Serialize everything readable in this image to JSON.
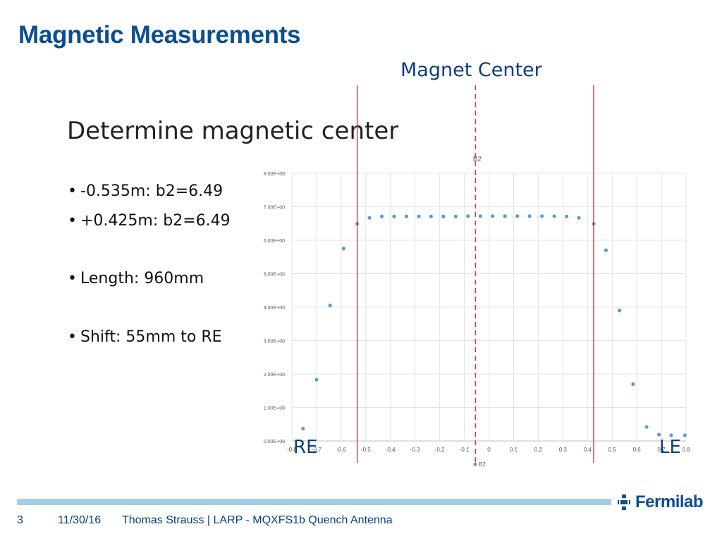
{
  "slide": {
    "title": "Magnetic Measurements",
    "magnet_center_label": "Magnet Center",
    "content_title": "Determine magnetic center",
    "bullets": [
      "-0.535m: b2=6.49",
      "+0.425m: b2=6.49",
      "Length: 960mm",
      "Shift: 55mm to RE"
    ],
    "bullet_glyph": "•",
    "left_end_label": "RE",
    "right_end_label": "LE",
    "colors": {
      "title": "#0b4f8f",
      "accent_blue": "#0b3e80",
      "marker_line": "#e0292b",
      "points": "#5b9bd5",
      "footer_bar": "#a3cde6"
    }
  },
  "footer": {
    "page_number": "3",
    "date": "11/30/16",
    "text": "Thomas Strauss | LARP - MQXFS1b Quench Antenna",
    "logo_text": "Fermilab",
    "logo_icon": "fermilab-logo-icon"
  },
  "chart_data": {
    "type": "scatter",
    "title": "B2",
    "xlim": [
      -0.8,
      0.8
    ],
    "ylim": [
      0,
      8
    ],
    "x_ticks": [
      -0.8,
      -0.7,
      -0.6,
      -0.5,
      -0.4,
      -0.3,
      -0.2,
      -0.1,
      0,
      0.1,
      0.2,
      0.3,
      0.4,
      0.5,
      0.6,
      0.7,
      0.8
    ],
    "x_tick_labels": [
      "-0.8",
      "-0.7",
      "-0.6",
      "-0.5",
      "-0.4",
      "-0.3",
      "-0.2",
      "-0.1",
      "0",
      "0.1",
      "0.2",
      "0.3",
      "0.4",
      "0.5",
      "0.6",
      "0.7",
      "0.8"
    ],
    "y_ticks": [
      0,
      1,
      2,
      3,
      4,
      5,
      6,
      7,
      8
    ],
    "y_tick_labels": [
      "0.00E+00",
      "1.00E+00",
      "2.00E+00",
      "3.00E+00",
      "4.00E+00",
      "5.00E+00",
      "6.00E+00",
      "7.00E+00",
      "8.00E+00"
    ],
    "grid": true,
    "legend": "bottom",
    "series": [
      {
        "name": "B2",
        "color": "#5b9bd5",
        "x": [
          -0.755,
          -0.7,
          -0.645,
          -0.59,
          -0.535,
          -0.485,
          -0.435,
          -0.385,
          -0.335,
          -0.285,
          -0.235,
          -0.185,
          -0.135,
          -0.085,
          -0.035,
          0.015,
          0.065,
          0.115,
          0.165,
          0.215,
          0.265,
          0.315,
          0.365,
          0.425,
          0.475,
          0.53,
          0.585,
          0.64,
          0.69,
          0.74,
          0.795
        ],
        "y": [
          0.37,
          1.83,
          4.05,
          5.75,
          6.49,
          6.67,
          6.71,
          6.71,
          6.71,
          6.71,
          6.71,
          6.71,
          6.71,
          6.72,
          6.72,
          6.72,
          6.72,
          6.72,
          6.72,
          6.72,
          6.72,
          6.71,
          6.67,
          6.49,
          5.7,
          3.9,
          1.7,
          0.42,
          0.19,
          0.17,
          0.17
        ]
      }
    ],
    "markers": [
      {
        "x": -0.535,
        "style": "solid",
        "color": "#e0292b"
      },
      {
        "x": -0.055,
        "style": "dashed",
        "color": "#e0292b"
      },
      {
        "x": 0.425,
        "style": "solid",
        "color": "#e0292b"
      }
    ]
  }
}
